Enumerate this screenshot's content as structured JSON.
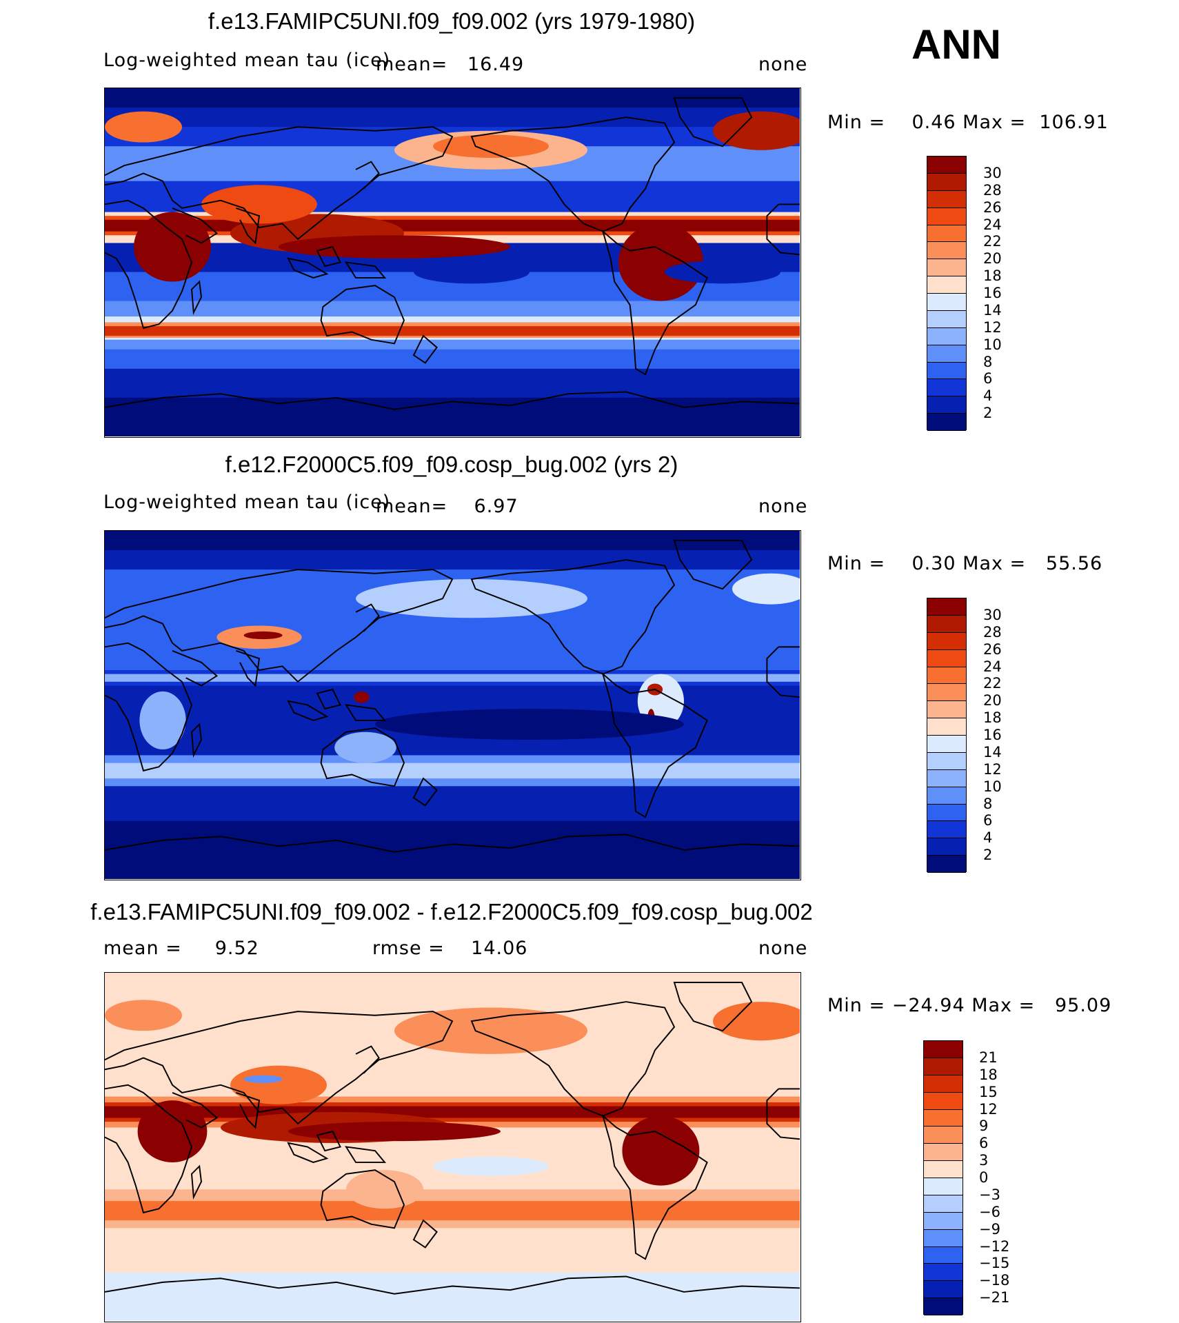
{
  "season": "ANN",
  "panels": [
    {
      "title": "f.e13.FAMIPC5UNI.f09_f09.002 (yrs 1979-1980)",
      "left_label": "Log-weighted mean tau (ice)",
      "mean_label": "mean=   16.49",
      "right_label": "none",
      "minmax": "Min =    0.46 Max =  106.91",
      "colorbar": {
        "labels": [
          "30",
          "28",
          "26",
          "24",
          "22",
          "20",
          "18",
          "16",
          "14",
          "12",
          "10",
          "8",
          "6",
          "4",
          "2"
        ],
        "colors": [
          "#8b0000",
          "#b01a00",
          "#d42e05",
          "#ee4a12",
          "#f7702f",
          "#fb8f5a",
          "#fcb48e",
          "#fee0cc",
          "#dbeafd",
          "#b4cffd",
          "#8cb2fc",
          "#5f8ff9",
          "#2e63f2",
          "#1135d6",
          "#0620b2",
          "#000c7a"
        ]
      },
      "field": "panel1"
    },
    {
      "title": "f.e12.F2000C5.f09_f09.cosp_bug.002 (yrs 2)",
      "left_label": "Log-weighted mean tau (ice)",
      "mean_label": "mean=    6.97",
      "right_label": "none",
      "minmax": "Min =    0.30 Max =   55.56",
      "colorbar": {
        "labels": [
          "30",
          "28",
          "26",
          "24",
          "22",
          "20",
          "18",
          "16",
          "14",
          "12",
          "10",
          "8",
          "6",
          "4",
          "2"
        ],
        "colors": [
          "#8b0000",
          "#b01a00",
          "#d42e05",
          "#ee4a12",
          "#f7702f",
          "#fb8f5a",
          "#fcb48e",
          "#fee0cc",
          "#dbeafd",
          "#b4cffd",
          "#8cb2fc",
          "#5f8ff9",
          "#2e63f2",
          "#1135d6",
          "#0620b2",
          "#000c7a"
        ]
      },
      "field": "panel2"
    },
    {
      "title": "f.e13.FAMIPC5UNI.f09_f09.002 - f.e12.F2000C5.f09_f09.cosp_bug.002",
      "left_label": "mean =     9.52",
      "mean_label": "rmse =    14.06",
      "right_label": "none",
      "minmax": "Min = −24.94 Max =   95.09",
      "colorbar": {
        "labels": [
          "21",
          "18",
          "15",
          "12",
          "9",
          "6",
          "3",
          "0",
          "−3",
          "−6",
          "−9",
          "−12",
          "−15",
          "−18",
          "−21"
        ],
        "colors": [
          "#8b0000",
          "#b01a00",
          "#d42e05",
          "#ee4a12",
          "#f7702f",
          "#fb8f5a",
          "#fcb48e",
          "#fee0cc",
          "#dbeafd",
          "#b4cffd",
          "#8cb2fc",
          "#5f8ff9",
          "#2e63f2",
          "#1135d6",
          "#0620b2",
          "#000c7a"
        ]
      },
      "field": "diff"
    }
  ]
}
